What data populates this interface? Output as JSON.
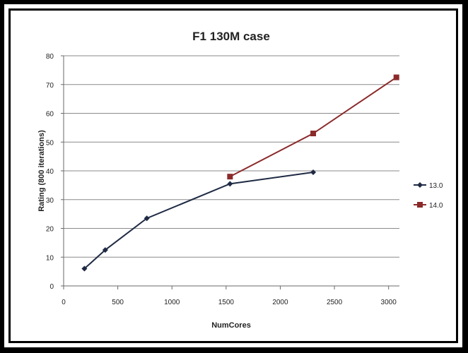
{
  "chart_data": {
    "type": "line",
    "title": "F1 130M case",
    "xlabel": "NumCores",
    "ylabel": "Rating (800 iterations)",
    "xlim": [
      0,
      3100
    ],
    "ylim": [
      0,
      80
    ],
    "x_ticks": [
      0,
      500,
      1000,
      1500,
      2000,
      2500,
      3000
    ],
    "y_ticks": [
      0,
      10,
      20,
      30,
      40,
      50,
      60,
      70,
      80
    ],
    "grid": "horizontal",
    "legend_position": "right",
    "series": [
      {
        "name": "13.0",
        "color": "#1f2a44",
        "marker": "diamond",
        "points": [
          {
            "x": 192,
            "y": 6
          },
          {
            "x": 384,
            "y": 12.5
          },
          {
            "x": 768,
            "y": 23.5
          },
          {
            "x": 1536,
            "y": 35.5
          },
          {
            "x": 2304,
            "y": 39.5
          }
        ]
      },
      {
        "name": "14.0",
        "color": "#8b2a2a",
        "marker": "square",
        "points": [
          {
            "x": 1536,
            "y": 38
          },
          {
            "x": 2304,
            "y": 53
          },
          {
            "x": 3072,
            "y": 72.5
          }
        ]
      }
    ]
  }
}
